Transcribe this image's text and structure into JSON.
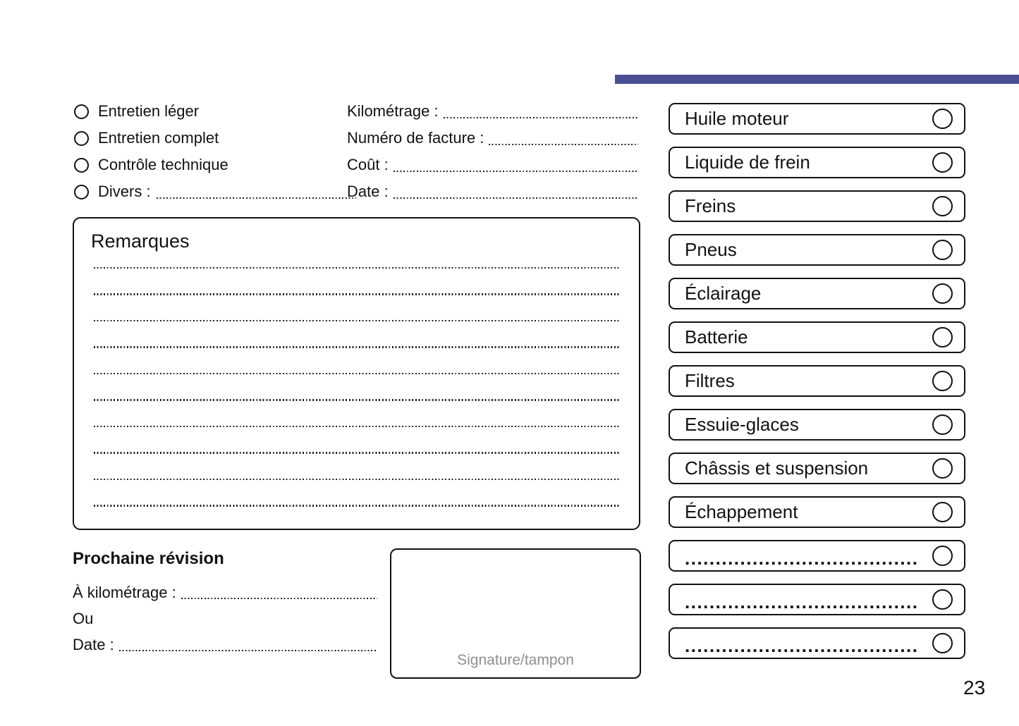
{
  "page": {
    "number": "23",
    "accent_color": "#4a4e93",
    "signature_gray": "#8f8f8f"
  },
  "service_types": [
    {
      "label": "Entretien léger"
    },
    {
      "label": "Entretien complet"
    },
    {
      "label": "Contrôle technique"
    },
    {
      "label": "Divers :"
    }
  ],
  "invoice_fields": [
    {
      "label": "Kilométrage :"
    },
    {
      "label": "Numéro de facture :"
    },
    {
      "label": "Coût :"
    },
    {
      "label": "Date :"
    }
  ],
  "remarks": {
    "title": "Remarques",
    "line_count": 10
  },
  "next_service": {
    "title": "Prochaine révision",
    "fields": [
      {
        "label": "À kilométrage :"
      },
      {
        "label": "Ou"
      },
      {
        "label": "Date :"
      }
    ]
  },
  "signature": {
    "label": "Signature/tampon"
  },
  "checklist": [
    {
      "label": "Huile moteur"
    },
    {
      "label": "Liquide de frein"
    },
    {
      "label": "Freins"
    },
    {
      "label": "Pneus"
    },
    {
      "label": "Éclairage"
    },
    {
      "label": "Batterie"
    },
    {
      "label": "Filtres"
    },
    {
      "label": "Essuie-glaces"
    },
    {
      "label": "Châssis et suspension"
    },
    {
      "label": "Échappement"
    },
    {
      "label": "......................................"
    },
    {
      "label": "......................................"
    },
    {
      "label": "......................................"
    }
  ]
}
